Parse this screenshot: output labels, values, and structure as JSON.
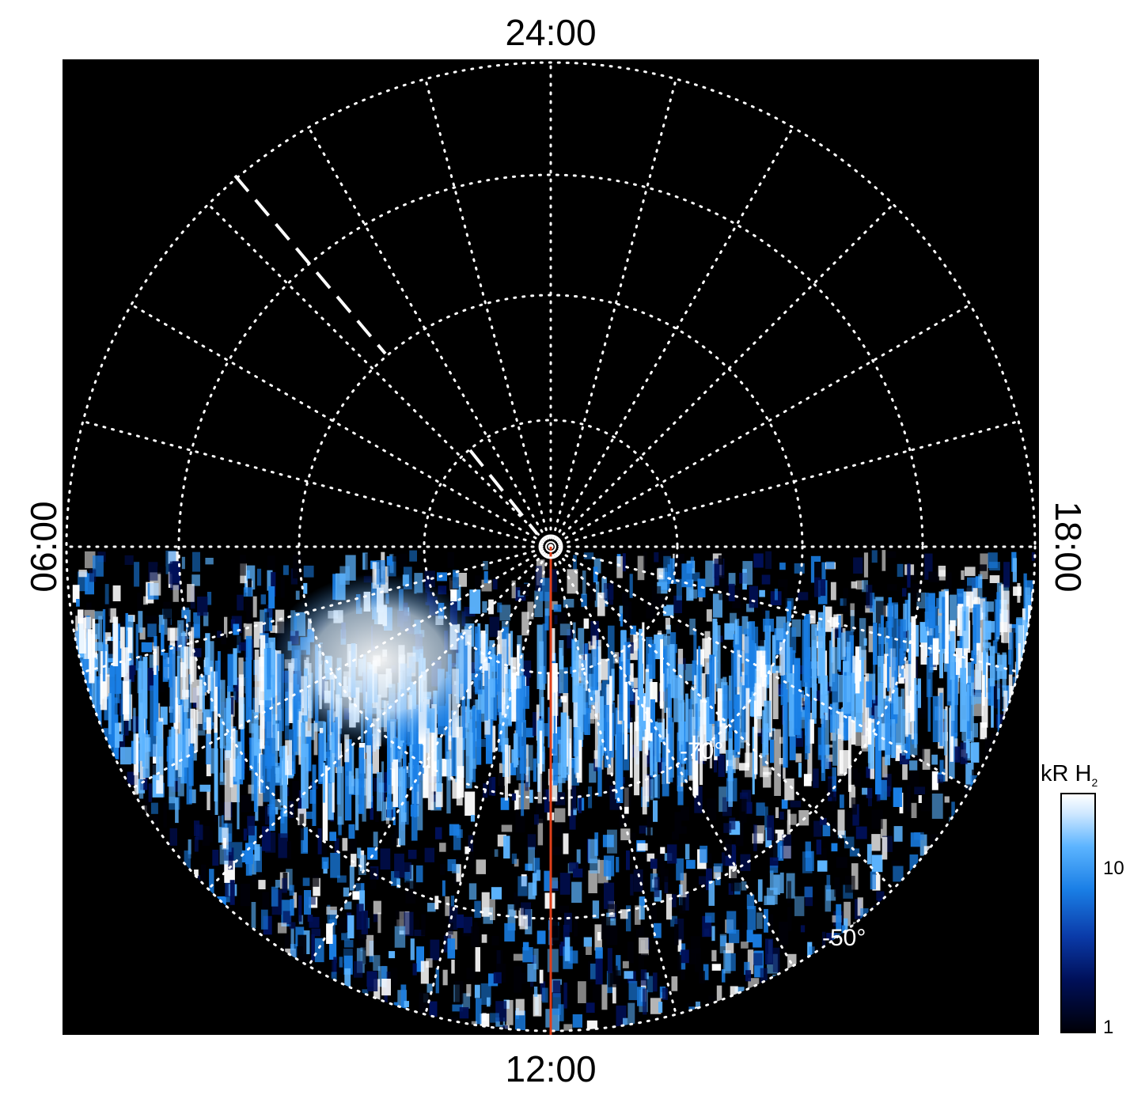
{
  "figure": {
    "local_time_labels": {
      "top": "24:00",
      "bottom": "12:00",
      "left": "06:00",
      "right": "18:00"
    },
    "latitude_labels": [
      "-70°",
      "-50°"
    ],
    "colorbar": {
      "title_main": "kR H",
      "title_sub": "2",
      "ticks": [
        "10",
        "1"
      ],
      "scale": "log",
      "colors": [
        "#000008",
        "#00105a",
        "#1a7fe6",
        "#5cb4ff",
        "#ffffff"
      ]
    },
    "meridian_line_color": "#e0401a",
    "grid_color": "#ffffff"
  }
}
